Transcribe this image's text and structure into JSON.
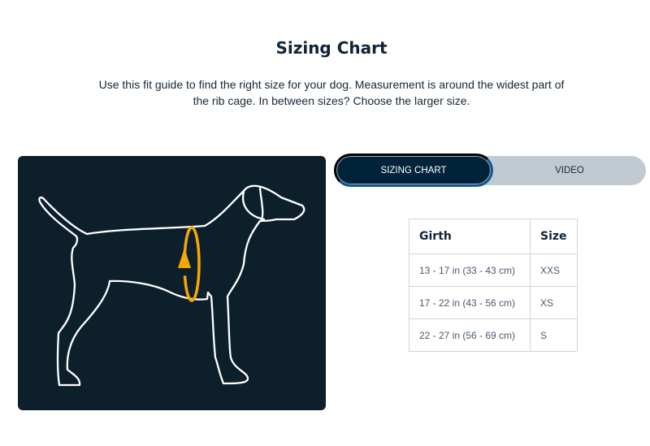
{
  "header": {
    "title": "Sizing Chart",
    "description": "Use this fit guide to find the right size for your dog. Measurement is around the widest part of the rib cage. In between sizes? Choose the larger size."
  },
  "tabs": [
    {
      "label": "SIZING CHART",
      "active": true
    },
    {
      "label": "VIDEO",
      "active": false
    }
  ],
  "table": {
    "headers": [
      "Girth",
      "Size"
    ],
    "rows": [
      [
        "13 - 17 in (33 - 43 cm)",
        "XXS"
      ],
      [
        "17 - 22 in (43 - 56 cm)",
        "XS"
      ],
      [
        "22 - 27 in (56 - 69 cm)",
        "S"
      ]
    ]
  },
  "colors": {
    "navy": "#0e1f2c",
    "accent": "#f5a800",
    "tab_inactive": "#c2cad1"
  },
  "illustration": {
    "icon": "dog-girth-measurement-illustration"
  }
}
